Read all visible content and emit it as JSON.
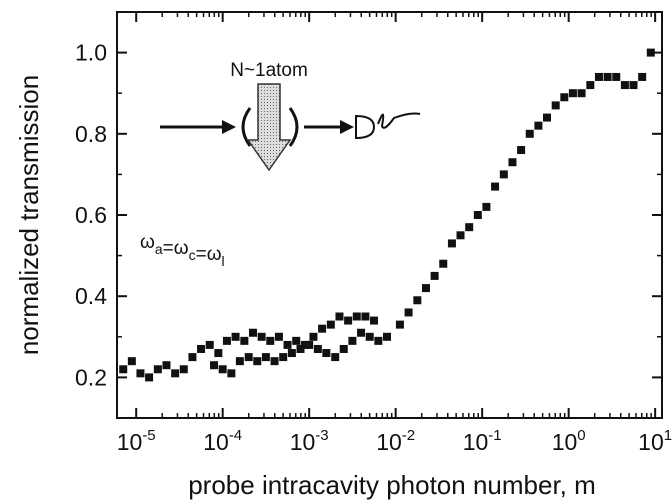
{
  "chart_data": {
    "type": "scatter",
    "xlabel": "probe intracavity photon number, m",
    "ylabel": "normalized transmission",
    "annotations": [
      "N~1atom",
      "ωa=ωc=ωl"
    ],
    "xscale": "log",
    "xlim": [
      6e-06,
      12
    ],
    "ylim": [
      0.1,
      1.1
    ],
    "xticks": [
      {
        "value": 1e-05,
        "label": "10-5"
      },
      {
        "value": 0.0001,
        "label": "10-4"
      },
      {
        "value": 0.001,
        "label": "10-3"
      },
      {
        "value": 0.01,
        "label": "10-2"
      },
      {
        "value": 0.1,
        "label": "10-1"
      },
      {
        "value": 1,
        "label": "100"
      },
      {
        "value": 10,
        "label": "101"
      }
    ],
    "yticks": [
      0.2,
      0.4,
      0.6,
      0.8,
      {
        "value": 1,
        "label": "1.0"
      }
    ],
    "color": "#111111",
    "x": [
      7.08e-06,
      8.91e-06,
      1.12e-05,
      1.41e-05,
      1.78e-05,
      2.24e-05,
      2.82e-05,
      3.55e-05,
      4.47e-05,
      5.62e-05,
      7.08e-05,
      8.91e-05,
      0.000112,
      0.000141,
      0.000178,
      0.000224,
      0.000282,
      0.000355,
      0.000447,
      0.000562,
      0.000708,
      0.000891,
      0.00112,
      0.00141,
      0.00178,
      0.00224,
      0.00282,
      0.00355,
      0.00447,
      0.00562,
      7.94e-05,
      0.0001,
      0.000126,
      0.000158,
      0.0002,
      0.000251,
      0.000316,
      0.000398,
      0.000501,
      0.000631,
      0.000794,
      0.001,
      0.00126,
      0.00158,
      0.002,
      0.00251,
      0.00316,
      0.00398,
      0.00501,
      0.00631,
      0.00794,
      0.0112,
      0.0141,
      0.0178,
      0.0224,
      0.0282,
      0.0355,
      0.0447,
      0.0562,
      0.0708,
      0.0891,
      0.112,
      0.141,
      0.178,
      0.224,
      0.282,
      0.355,
      0.447,
      0.562,
      0.708,
      0.891,
      1.12,
      1.41,
      1.78,
      2.24,
      2.82,
      3.55,
      4.47,
      5.62,
      7.08,
      8.91
    ],
    "values": [
      0.22,
      0.24,
      0.21,
      0.2,
      0.22,
      0.23,
      0.21,
      0.22,
      0.25,
      0.27,
      0.28,
      0.26,
      0.29,
      0.3,
      0.29,
      0.31,
      0.3,
      0.29,
      0.3,
      0.28,
      0.29,
      0.28,
      0.3,
      0.32,
      0.33,
      0.35,
      0.34,
      0.35,
      0.35,
      0.34,
      0.23,
      0.22,
      0.21,
      0.24,
      0.25,
      0.24,
      0.25,
      0.24,
      0.25,
      0.26,
      0.27,
      0.28,
      0.27,
      0.26,
      0.25,
      0.27,
      0.29,
      0.31,
      0.3,
      0.29,
      0.3,
      0.33,
      0.36,
      0.39,
      0.42,
      0.45,
      0.48,
      0.53,
      0.55,
      0.57,
      0.6,
      0.62,
      0.67,
      0.7,
      0.73,
      0.76,
      0.8,
      0.82,
      0.84,
      0.87,
      0.89,
      0.9,
      0.9,
      0.92,
      0.94,
      0.94,
      0.94,
      0.92,
      0.92,
      0.94,
      1.0
    ]
  }
}
